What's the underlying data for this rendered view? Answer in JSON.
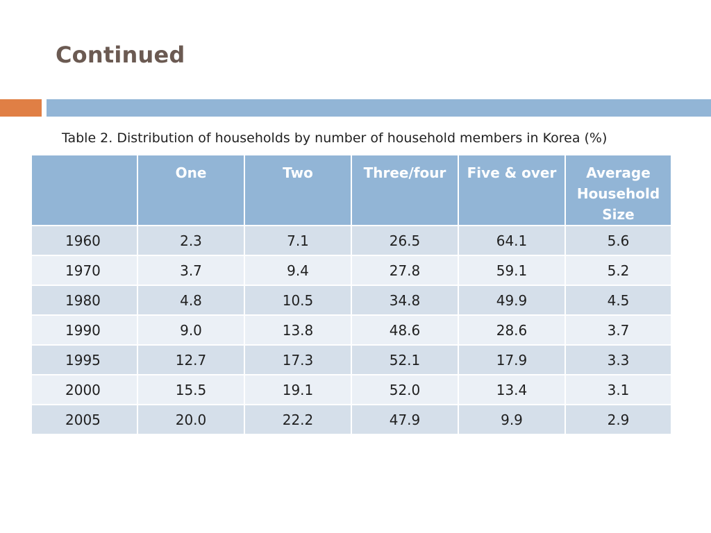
{
  "slide": {
    "title": "Continued"
  },
  "table": {
    "caption": "Table 2. Distribution of households by number of household members in Korea (%)",
    "headers": [
      "",
      "One",
      "Two",
      "Three/four",
      "Five & over",
      "Average Household Size"
    ],
    "rows": [
      [
        "1960",
        "2.3",
        "7.1",
        "26.5",
        "64.1",
        "5.6"
      ],
      [
        "1970",
        "3.7",
        "9.4",
        "27.8",
        "59.1",
        "5.2"
      ],
      [
        "1980",
        "4.8",
        "10.5",
        "34.8",
        "49.9",
        "4.5"
      ],
      [
        "1990",
        "9.0",
        "13.8",
        "48.6",
        "28.6",
        "3.7"
      ],
      [
        "1995",
        "12.7",
        "17.3",
        "52.1",
        "17.9",
        "3.3"
      ],
      [
        "2000",
        "15.5",
        "19.1",
        "52.0",
        "13.4",
        "3.1"
      ],
      [
        "2005",
        "20.0",
        "22.2",
        "47.9",
        "9.9",
        "2.9"
      ]
    ]
  },
  "colors": {
    "title": "#6b5a52",
    "accent_orange": "#e07f45",
    "accent_blue": "#92b5d6",
    "row_dark": "#d5dfea",
    "row_light": "#ebf0f6"
  }
}
